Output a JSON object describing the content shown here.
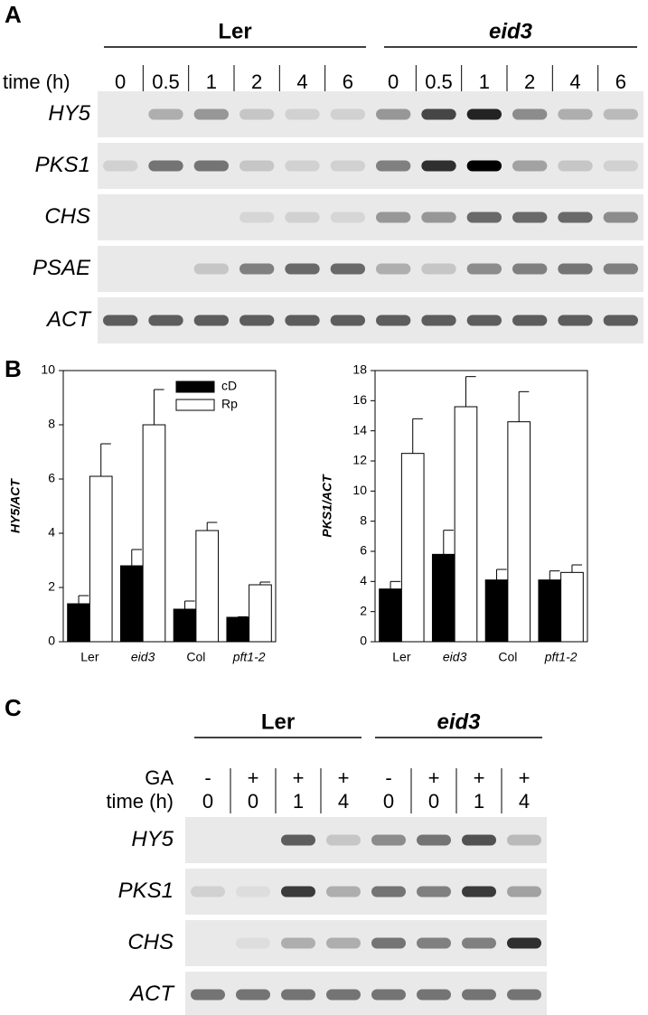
{
  "panel_a": {
    "label": "A",
    "groups": [
      "Ler",
      "eid3"
    ],
    "time_label": "time (h)",
    "times": [
      "0",
      "0.5",
      "1",
      "2",
      "4",
      "6",
      "0",
      "0.5",
      "1",
      "2",
      "4",
      "6"
    ],
    "genes": [
      "HY5",
      "PKS1",
      "CHS",
      "PSAE",
      "ACT"
    ]
  },
  "panel_b": {
    "label": "B"
  },
  "chart_data": [
    {
      "type": "bar",
      "ylabel": "HY5/ACT",
      "categories": [
        "Ler",
        "eid3",
        "Col",
        "pft1-2"
      ],
      "series": [
        {
          "name": "cD",
          "color": "#000000",
          "values": [
            1.4,
            2.8,
            1.2,
            0.9
          ],
          "errors": [
            0.3,
            0.6,
            0.3,
            0.02
          ]
        },
        {
          "name": "Rp",
          "color": "#ffffff",
          "values": [
            6.1,
            8.0,
            4.1,
            2.1
          ],
          "errors": [
            1.2,
            1.3,
            0.3,
            0.1
          ]
        }
      ],
      "ylim": [
        0,
        10
      ],
      "yticks": [
        0,
        2,
        4,
        6,
        8,
        10
      ],
      "legend": "upper right"
    },
    {
      "type": "bar",
      "ylabel": "PKS1/ACT",
      "categories": [
        "Ler",
        "eid3",
        "Col",
        "pft1-2"
      ],
      "series": [
        {
          "color": "#000000",
          "values": [
            3.5,
            5.8,
            4.1,
            4.1
          ],
          "errors": [
            0.5,
            1.6,
            0.7,
            0.6
          ]
        },
        {
          "color": "#ffffff",
          "values": [
            12.5,
            15.6,
            14.6,
            4.6
          ],
          "errors": [
            2.3,
            2.0,
            2.0,
            0.5
          ]
        }
      ],
      "ylim": [
        0,
        18
      ],
      "yticks": [
        0,
        2,
        4,
        6,
        8,
        10,
        12,
        14,
        16,
        18
      ]
    }
  ],
  "panel_c": {
    "label": "C",
    "groups": [
      "Ler",
      "eid3"
    ],
    "treatment_label": "GA",
    "treatments": [
      "-",
      "+",
      "+",
      "+",
      "-",
      "+",
      "+",
      "+"
    ],
    "time_label": "time (h)",
    "times": [
      "0",
      "0",
      "1",
      "4",
      "0",
      "0",
      "1",
      "4"
    ],
    "genes": [
      "HY5",
      "PKS1",
      "CHS",
      "ACT"
    ]
  }
}
